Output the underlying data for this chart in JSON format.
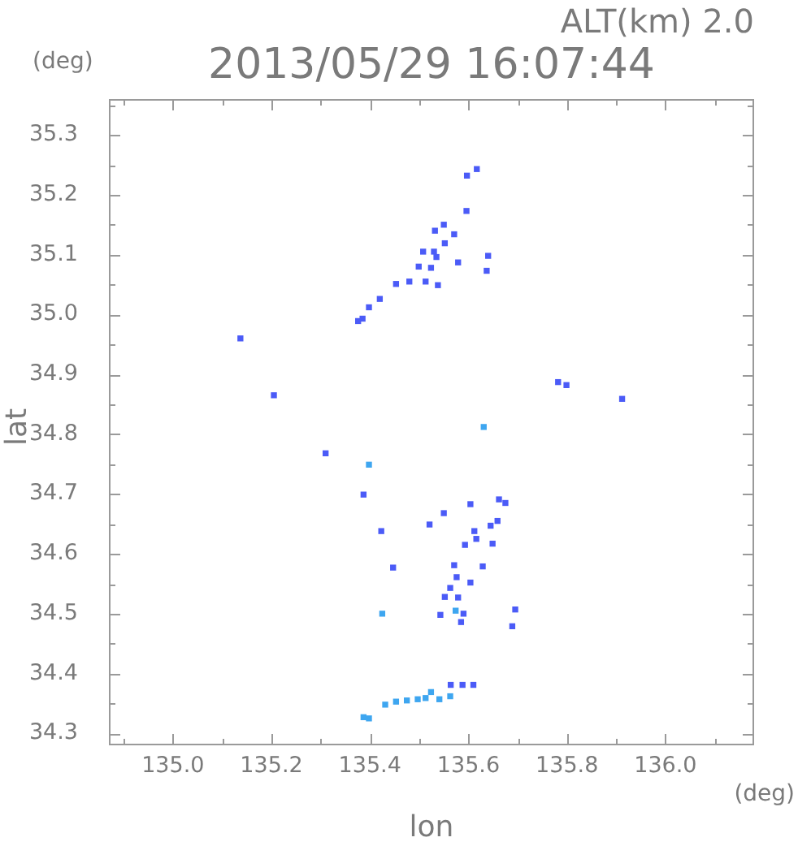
{
  "chart_data": {
    "type": "scatter",
    "title": "2013/05/29 16:07:44",
    "subtitle": "ALT(km) 2.0",
    "xlabel": "lon",
    "ylabel": "lat",
    "annotations": [
      "(deg)",
      "(deg)"
    ],
    "xlim": [
      134.87,
      136.18
    ],
    "ylim": [
      34.28,
      35.36
    ],
    "xticks": [
      {
        "value": 134.9,
        "label": null
      },
      {
        "value": 135.0,
        "label": "135.0"
      },
      {
        "value": 135.1,
        "label": null
      },
      {
        "value": 135.2,
        "label": "135.2"
      },
      {
        "value": 135.3,
        "label": null
      },
      {
        "value": 135.4,
        "label": "135.4"
      },
      {
        "value": 135.5,
        "label": null
      },
      {
        "value": 135.6,
        "label": "135.6"
      },
      {
        "value": 135.7,
        "label": null
      },
      {
        "value": 135.8,
        "label": "135.8"
      },
      {
        "value": 135.9,
        "label": null
      },
      {
        "value": 136.0,
        "label": "136.0"
      },
      {
        "value": 136.1,
        "label": null
      }
    ],
    "yticks": [
      34.3,
      {
        "value": 34.35,
        "label": null
      },
      34.4,
      {
        "value": 34.45,
        "label": null
      },
      34.5,
      {
        "value": 34.55,
        "label": null
      },
      34.6,
      {
        "value": 34.65,
        "label": null
      },
      34.7,
      {
        "value": 34.75,
        "label": null
      },
      34.8,
      {
        "value": 34.85,
        "label": null
      },
      34.9,
      {
        "value": 34.95,
        "label": null
      },
      {
        "value": 35.0,
        "label": "35.0"
      },
      {
        "value": 35.05,
        "label": null
      },
      35.1,
      {
        "value": 35.15,
        "label": null
      },
      35.2,
      {
        "value": 35.25,
        "label": null
      },
      35.3,
      {
        "value": 35.35,
        "label": null
      }
    ],
    "marker": "square",
    "series": [
      {
        "color": "#4b5bf7",
        "x": [
          135.617,
          135.597,
          135.596,
          135.53,
          135.508,
          135.535,
          135.524,
          135.552,
          135.532,
          135.55,
          135.571,
          135.499,
          135.513,
          135.579,
          135.64,
          135.637,
          135.538,
          135.48,
          135.453,
          135.42,
          135.398,
          135.385,
          135.376,
          135.137,
          135.205,
          135.31,
          135.387,
          135.782,
          135.799,
          135.912,
          135.662,
          135.675,
          135.604,
          135.55,
          135.521,
          135.645,
          135.659,
          135.612,
          135.423,
          135.593,
          135.616,
          135.649,
          135.447,
          135.571,
          135.629,
          135.576,
          135.604,
          135.563,
          135.552,
          135.579,
          135.543,
          135.59,
          135.585,
          135.695,
          135.689,
          135.564,
          135.588,
          135.61
        ],
        "values": [
          35.243,
          35.232,
          35.173,
          35.105,
          35.105,
          35.096,
          35.078,
          35.119,
          35.14,
          35.15,
          35.134,
          35.08,
          35.055,
          35.087,
          35.098,
          35.073,
          35.049,
          35.055,
          35.051,
          35.026,
          35.012,
          34.993,
          34.989,
          34.96,
          34.865,
          34.768,
          34.699,
          34.887,
          34.882,
          34.859,
          34.691,
          34.685,
          34.683,
          34.668,
          34.649,
          34.647,
          34.655,
          34.638,
          34.638,
          34.615,
          34.625,
          34.617,
          34.577,
          34.581,
          34.579,
          34.561,
          34.552,
          34.543,
          34.528,
          34.527,
          34.498,
          34.5,
          34.486,
          34.507,
          34.479,
          34.381,
          34.381,
          34.381
        ]
      },
      {
        "color": "#3ea6f0",
        "x": [
          135.398,
          135.631,
          135.425,
          135.574,
          135.431,
          135.453,
          135.475,
          135.497,
          135.513,
          135.541,
          135.563,
          135.524,
          135.387,
          135.398
        ],
        "values": [
          34.749,
          34.812,
          34.5,
          34.505,
          34.348,
          34.353,
          34.355,
          34.357,
          34.359,
          34.357,
          34.362,
          34.369,
          34.327,
          34.325
        ]
      }
    ]
  }
}
